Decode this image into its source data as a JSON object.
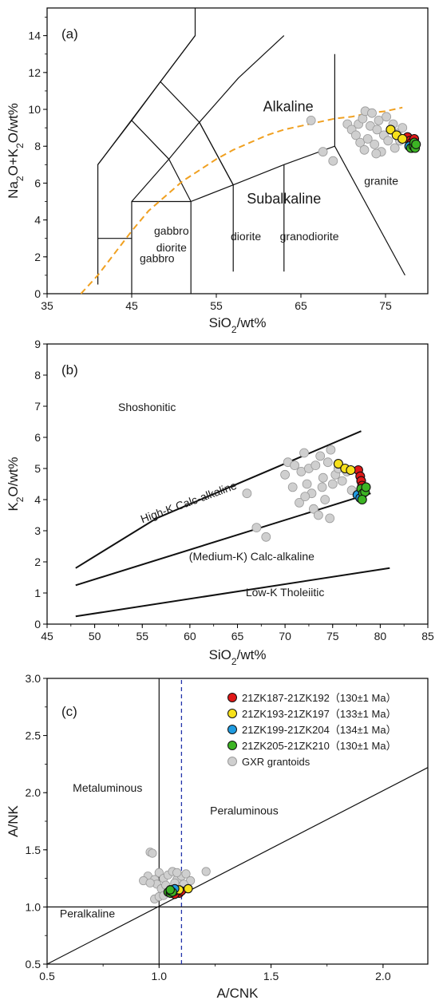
{
  "colors": {
    "red": "#e01818",
    "yellow": "#f7e11b",
    "blue": "#1f9be0",
    "green": "#3cb424",
    "gray": "#cfcfcf",
    "orange_curve": "#f0a020",
    "ratio_line": "#2233aa"
  },
  "chart_data": [
    {
      "type": "scatter",
      "panel_label": "(a)",
      "xlabel_main": "SiO",
      "xlabel_sub": "2",
      "xlabel_tail": "/wt%",
      "ylabel_parts": [
        "Na",
        "2",
        "O+K",
        "2",
        "O/wt%"
      ],
      "xlim": [
        35,
        80
      ],
      "ylim": [
        0,
        15.5
      ],
      "xticks": [
        "35",
        "45",
        "55",
        "65",
        "75"
      ],
      "xtick_values": [
        35,
        45,
        55,
        65,
        75
      ],
      "yticks": [
        "0",
        "2",
        "4",
        "6",
        "8",
        "10",
        "12",
        "14"
      ],
      "ytick_values": [
        0,
        2,
        4,
        6,
        8,
        10,
        12,
        14
      ],
      "region_labels": [
        {
          "text": "Alkaline",
          "x": 63.5,
          "y": 9.9,
          "big": true
        },
        {
          "text": "Subalkaline",
          "x": 63,
          "y": 4.9,
          "big": true
        },
        {
          "text": "granite",
          "x": 74.5,
          "y": 5.9
        },
        {
          "text": "gabbro",
          "x": 48,
          "y": 1.7
        },
        {
          "text": "gabbro",
          "x": 49.7,
          "y": 3.2
        },
        {
          "text": "diorite",
          "x": 49.7,
          "y": 2.3
        },
        {
          "text": "diorite",
          "x": 58.5,
          "y": 2.9
        },
        {
          "text": "granodiorite",
          "x": 66,
          "y": 2.9
        }
      ],
      "tas_boundaries": [
        [
          [
            41,
            0.5
          ],
          [
            41,
            7
          ],
          [
            52.5,
            14
          ],
          [
            52.5,
            15.5
          ]
        ],
        [
          [
            41,
            3
          ],
          [
            45,
            3
          ]
        ],
        [
          [
            45,
            0
          ],
          [
            45,
            5
          ],
          [
            49.4,
            7.3
          ],
          [
            53,
            9.3
          ],
          [
            57.6,
            11.7
          ],
          [
            63,
            14
          ]
        ],
        [
          [
            45,
            5
          ],
          [
            52,
            5
          ]
        ],
        [
          [
            52,
            0
          ],
          [
            52,
            5
          ],
          [
            57,
            5.9
          ],
          [
            63,
            7
          ],
          [
            69,
            8
          ]
        ],
        [
          [
            57,
            1.2
          ],
          [
            57,
            5.9
          ]
        ],
        [
          [
            63,
            1.2
          ],
          [
            63,
            7
          ]
        ],
        [
          [
            41,
            7
          ],
          [
            45,
            9.4
          ],
          [
            48.4,
            11.5
          ],
          [
            52.5,
            14
          ]
        ],
        [
          [
            45,
            9.4
          ],
          [
            49.4,
            7.3
          ],
          [
            52,
            5
          ]
        ],
        [
          [
            48.4,
            11.5
          ],
          [
            53,
            9.3
          ],
          [
            57,
            5.9
          ]
        ],
        [
          [
            53,
            9.3
          ],
          [
            57,
            5.9
          ]
        ],
        [
          [
            69,
            13
          ],
          [
            69,
            8
          ],
          [
            77.3,
            1
          ]
        ]
      ],
      "alkaline_curve": [
        [
          39,
          0
        ],
        [
          41,
          1
        ],
        [
          43,
          2.2
        ],
        [
          45,
          3.4
        ],
        [
          47,
          4.5
        ],
        [
          49,
          5.3
        ],
        [
          51,
          6.1
        ],
        [
          53,
          6.7
        ],
        [
          55,
          7.3
        ],
        [
          57,
          7.8
        ],
        [
          59,
          8.2
        ],
        [
          61,
          8.6
        ],
        [
          63,
          8.9
        ],
        [
          65,
          9.1
        ],
        [
          67,
          9.3
        ],
        [
          69,
          9.5
        ],
        [
          71,
          9.6
        ],
        [
          73,
          9.8
        ],
        [
          75,
          9.9
        ],
        [
          77,
          10.1
        ]
      ],
      "series": [
        {
          "name": "GXR grantoids",
          "color_key": "gray",
          "points": [
            [
              66.2,
              9.4
            ],
            [
              67.6,
              7.7
            ],
            [
              68.8,
              7.2
            ],
            [
              70.5,
              9.2
            ],
            [
              71,
              8.9
            ],
            [
              71.5,
              8.6
            ],
            [
              71.8,
              9.2
            ],
            [
              72,
              8.2
            ],
            [
              72.3,
              9.5
            ],
            [
              72.6,
              9.9
            ],
            [
              72.9,
              8.4
            ],
            [
              73.2,
              9.1
            ],
            [
              73.4,
              9.8
            ],
            [
              73.7,
              8.1
            ],
            [
              74,
              8.9
            ],
            [
              74.2,
              9.4
            ],
            [
              74.5,
              7.7
            ],
            [
              74.8,
              8.6
            ],
            [
              75.1,
              9.6
            ],
            [
              75.3,
              8.3
            ],
            [
              75.6,
              8.9
            ],
            [
              75.9,
              9.2
            ],
            [
              76.1,
              7.9
            ],
            [
              76.4,
              8.7
            ],
            [
              76.7,
              8.3
            ],
            [
              77,
              9
            ],
            [
              72.5,
              7.8
            ],
            [
              73.9,
              7.6
            ]
          ]
        },
        {
          "name": "21ZK187-21ZK192",
          "color_key": "red",
          "points": [
            [
              77.6,
              8.5
            ],
            [
              77.9,
              8.3
            ],
            [
              78.1,
              8.2
            ],
            [
              78.3,
              8.1
            ],
            [
              78.4,
              8.4
            ]
          ]
        },
        {
          "name": "21ZK193-21ZK197",
          "color_key": "yellow",
          "points": [
            [
              75.6,
              8.9
            ],
            [
              76.3,
              8.6
            ],
            [
              77,
              8.4
            ]
          ]
        },
        {
          "name": "21ZK199-21ZK204",
          "color_key": "blue",
          "points": [
            [
              77.8,
              8
            ],
            [
              78.1,
              7.9
            ]
          ]
        },
        {
          "name": "21ZK205-21ZK210",
          "color_key": "green",
          "points": [
            [
              78,
              7.9
            ],
            [
              78.3,
              8
            ],
            [
              78.5,
              7.9
            ],
            [
              78.4,
              8.2
            ],
            [
              78.6,
              8.1
            ]
          ]
        }
      ]
    },
    {
      "type": "scatter",
      "panel_label": "(b)",
      "xlabel_main": "SiO",
      "xlabel_sub": "2",
      "xlabel_tail": "/wt%",
      "ylabel_parts": [
        "K",
        "2",
        "O/wt%"
      ],
      "xlim": [
        45,
        85
      ],
      "ylim": [
        0,
        9
      ],
      "xticks": [
        "45",
        "50",
        "55",
        "60",
        "65",
        "70",
        "75",
        "80",
        "85"
      ],
      "xtick_values": [
        45,
        50,
        55,
        60,
        65,
        70,
        75,
        80,
        85
      ],
      "yticks": [
        "0",
        "1",
        "2",
        "3",
        "4",
        "5",
        "6",
        "7",
        "8",
        "9"
      ],
      "ytick_values": [
        0,
        1,
        2,
        3,
        4,
        5,
        6,
        7,
        8,
        9
      ],
      "region_labels": [
        {
          "text": "Shoshonitic",
          "x": 55.5,
          "y": 6.85,
          "rot": 0
        },
        {
          "text": "High-K Calc-alkaline",
          "x": 60,
          "y": 3.8,
          "rot": -20
        },
        {
          "text": "(Medium-K) Calc-alkaline",
          "x": 66.5,
          "y": 2.05,
          "rot": 0
        },
        {
          "text": "Low-K Tholeiitic",
          "x": 70,
          "y": 0.9,
          "rot": 0
        }
      ],
      "boundary_lines": [
        [
          [
            48,
            1.8
          ],
          [
            56.5,
            3.4
          ],
          [
            78,
            6.2
          ]
        ],
        [
          [
            48,
            1.25
          ],
          [
            79,
            4.2
          ]
        ],
        [
          [
            48,
            0.25
          ],
          [
            81,
            1.8
          ]
        ]
      ],
      "series": [
        {
          "name": "GXR grantoids",
          "color_key": "gray",
          "points": [
            [
              66,
              4.2
            ],
            [
              67,
              3.1
            ],
            [
              68,
              2.8
            ],
            [
              70,
              4.8
            ],
            [
              70.3,
              5.2
            ],
            [
              70.8,
              4.4
            ],
            [
              71,
              5.1
            ],
            [
              71.5,
              3.9
            ],
            [
              71.7,
              4.9
            ],
            [
              72,
              5.5
            ],
            [
              72.3,
              4.5
            ],
            [
              72.5,
              5
            ],
            [
              72.8,
              4.2
            ],
            [
              73,
              3.7
            ],
            [
              73.2,
              5.1
            ],
            [
              73.5,
              3.5
            ],
            [
              73.7,
              5.4
            ],
            [
              74,
              4.7
            ],
            [
              74.2,
              4
            ],
            [
              74.5,
              5.2
            ],
            [
              74.7,
              3.4
            ],
            [
              75,
              4.5
            ],
            [
              75.3,
              4.8
            ],
            [
              75.6,
              5
            ],
            [
              76,
              4.6
            ],
            [
              76.5,
              4.9
            ],
            [
              77,
              4.3
            ],
            [
              72.1,
              4.1
            ],
            [
              73.9,
              4.4
            ],
            [
              74.8,
              5.6
            ]
          ]
        },
        {
          "name": "21ZK187-21ZK192",
          "color_key": "red",
          "points": [
            [
              77.7,
              4.95
            ],
            [
              77.9,
              4.75
            ],
            [
              78,
              4.6
            ],
            [
              78.1,
              4.45
            ],
            [
              78.3,
              4.3
            ]
          ]
        },
        {
          "name": "21ZK193-21ZK197",
          "color_key": "yellow",
          "points": [
            [
              75.6,
              5.15
            ],
            [
              76.3,
              5.0
            ],
            [
              76.9,
              4.95
            ]
          ]
        },
        {
          "name": "21ZK199-21ZK204",
          "color_key": "blue",
          "points": [
            [
              77.6,
              4.15
            ],
            [
              77.9,
              4.05
            ]
          ]
        },
        {
          "name": "21ZK205-21ZK210",
          "color_key": "green",
          "points": [
            [
              78,
              4.35
            ],
            [
              78.2,
              4.2
            ],
            [
              78.4,
              4.25
            ],
            [
              78.1,
              4.0
            ],
            [
              78.5,
              4.4
            ]
          ]
        }
      ]
    },
    {
      "type": "scatter",
      "panel_label": "(c)",
      "xlabel": "A/CNK",
      "ylabel": "A/NK",
      "xlim": [
        0.5,
        2.2
      ],
      "ylim": [
        0.5,
        3.0
      ],
      "xticks": [
        "0.5",
        "1.0",
        "1.5",
        "2.0"
      ],
      "xtick_values": [
        0.5,
        1.0,
        1.5,
        2.0
      ],
      "yticks": [
        "0.5",
        "1.0",
        "1.5",
        "2.0",
        "2.5",
        "3.0"
      ],
      "ytick_values": [
        0.5,
        1.0,
        1.5,
        2.0,
        2.5,
        3.0
      ],
      "region_labels": [
        {
          "text": "Metaluminous",
          "x": 0.77,
          "y": 2.01
        },
        {
          "text": "Peraluminous",
          "x": 1.38,
          "y": 1.81
        },
        {
          "text": "Peralkaline",
          "x": 0.68,
          "y": 0.91
        }
      ],
      "solid_lines": [
        [
          [
            1.0,
            0.5
          ],
          [
            1.0,
            3.0
          ]
        ],
        [
          [
            0.5,
            1.0
          ],
          [
            2.2,
            1.0
          ]
        ],
        [
          [
            0.5,
            0.5
          ],
          [
            2.2,
            2.22
          ]
        ]
      ],
      "dashed_line": [
        [
          1.1,
          0.5
        ],
        [
          1.1,
          3.0
        ]
      ],
      "series": [
        {
          "name": "GXR grantoids",
          "color_key": "gray",
          "points": [
            [
              0.96,
              1.48
            ],
            [
              0.97,
              1.47
            ],
            [
              0.95,
              1.27
            ],
            [
              0.98,
              1.24
            ],
            [
              1.0,
              1.3
            ],
            [
              1.02,
              1.25
            ],
            [
              1.04,
              1.28
            ],
            [
              1.06,
              1.31
            ],
            [
              1.08,
              1.24
            ],
            [
              1.1,
              1.27
            ],
            [
              1.12,
              1.29
            ],
            [
              1.14,
              1.23
            ],
            [
              1.21,
              1.31
            ],
            [
              0.93,
              1.23
            ],
            [
              0.99,
              1.2
            ],
            [
              1.01,
              1.16
            ],
            [
              1.03,
              1.19
            ],
            [
              1.05,
              1.14
            ],
            [
              1.07,
              1.21
            ],
            [
              0.98,
              1.07
            ],
            [
              1.0,
              1.09
            ],
            [
              1.02,
              1.1
            ],
            [
              1.11,
              1.2
            ],
            [
              1.08,
              1.3
            ],
            [
              0.96,
              1.21
            ]
          ]
        },
        {
          "name": "21ZK187-21ZK192",
          "color_key": "red",
          "points": [
            [
              1.06,
              1.12
            ],
            [
              1.08,
              1.13
            ],
            [
              1.09,
              1.12
            ],
            [
              1.1,
              1.14
            ],
            [
              1.07,
              1.11
            ]
          ]
        },
        {
          "name": "21ZK193-21ZK197",
          "color_key": "yellow",
          "points": [
            [
              1.07,
              1.14
            ],
            [
              1.09,
              1.15
            ],
            [
              1.13,
              1.16
            ]
          ]
        },
        {
          "name": "21ZK199-21ZK204",
          "color_key": "blue",
          "points": [
            [
              1.05,
              1.15
            ],
            [
              1.07,
              1.16
            ]
          ]
        },
        {
          "name": "21ZK205-21ZK210",
          "color_key": "green",
          "points": [
            [
              1.04,
              1.13
            ],
            [
              1.05,
              1.12
            ],
            [
              1.05,
              1.14
            ],
            [
              1.06,
              1.13
            ],
            [
              1.05,
              1.15
            ]
          ]
        }
      ],
      "legend": {
        "placement": "top-right",
        "entries": [
          {
            "label": "21ZK187-21ZK192（130±1 Ma）",
            "color_key": "red"
          },
          {
            "label": "21ZK193-21ZK197（133±1 Ma）",
            "color_key": "yellow"
          },
          {
            "label": "21ZK199-21ZK204（134±1 Ma）",
            "color_key": "blue"
          },
          {
            "label": "21ZK205-21ZK210（130±1 Ma）",
            "color_key": "green"
          },
          {
            "label": "GXR grantoids",
            "color_key": "gray"
          }
        ]
      }
    }
  ]
}
